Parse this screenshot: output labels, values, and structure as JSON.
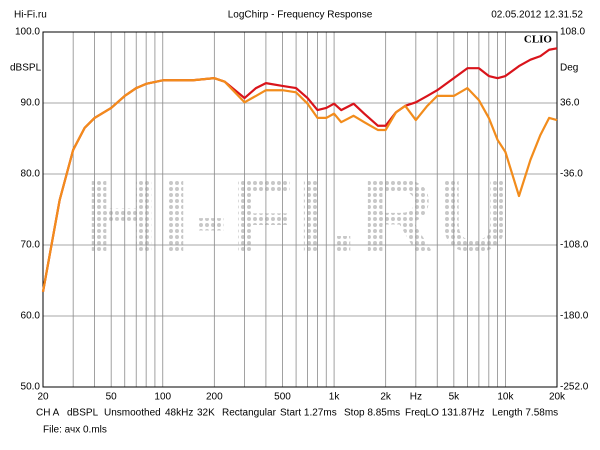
{
  "header": {
    "left": "Hi-Fi.ru",
    "center": "LogChirp - Frequency Response",
    "right": "02.05.2012 12.31.52"
  },
  "chart_data": {
    "type": "line",
    "brand": "CLIO",
    "watermark": "HI-FI.RU",
    "ylabel": "dBSPL",
    "y2label": "Deg",
    "xscale": "log",
    "grid": true,
    "x": [
      20,
      25,
      30,
      35,
      40,
      50,
      60,
      70,
      80,
      100,
      150,
      200,
      230,
      300,
      350,
      400,
      500,
      600,
      700,
      800,
      900,
      1000,
      1100,
      1300,
      1500,
      1800,
      2000,
      2300,
      2600,
      3000,
      3500,
      4000,
      5000,
      6000,
      7000,
      8000,
      9000,
      10000,
      12000,
      14000,
      16000,
      18000,
      20000
    ],
    "series": [
      {
        "color": "#d9141b",
        "values": [
          63.4,
          76.3,
          83.4,
          86.5,
          87.9,
          89.3,
          91,
          92.1,
          92.7,
          93.2,
          93.2,
          93.5,
          93,
          90.7,
          92.1,
          92.8,
          92.4,
          92.1,
          90.7,
          89,
          89.3,
          89.9,
          89,
          89.9,
          88.5,
          86.8,
          86.8,
          88.7,
          89.6,
          90.1,
          91,
          91.8,
          93.5,
          94.9,
          94.9,
          93.8,
          93.5,
          93.8,
          95.2,
          96.1,
          96.6,
          97.5,
          97.7
        ]
      },
      {
        "color": "#f28c1c",
        "values": [
          63.4,
          76.3,
          83.4,
          86.5,
          87.9,
          89.3,
          91,
          92.1,
          92.7,
          93.2,
          93.2,
          93.5,
          93,
          90.1,
          91,
          91.8,
          91.8,
          91.5,
          89.9,
          87.9,
          87.9,
          88.5,
          87.3,
          88.2,
          87.3,
          86.2,
          86.2,
          88.7,
          89.6,
          87.6,
          89.6,
          91,
          91,
          92.1,
          90.4,
          87.9,
          84.8,
          83.1,
          76.9,
          82,
          85.5,
          87.9,
          87.6
        ]
      }
    ],
    "xlim": [
      20,
      20000
    ],
    "xticks": [
      20,
      50,
      100,
      200,
      500,
      {
        "value": 1000,
        "label": "1k"
      },
      {
        "value": 2000,
        "label": "2k"
      },
      {
        "value": 3000,
        "label": "Hz"
      },
      {
        "value": 5000,
        "label": "5k"
      },
      {
        "value": 10000,
        "label": "10k"
      },
      {
        "value": 20000,
        "label": "20k"
      }
    ],
    "xminor": [
      30,
      40,
      60,
      70,
      80,
      90,
      300,
      400,
      600,
      700,
      800,
      900,
      4000,
      6000,
      7000,
      8000,
      9000
    ],
    "ylim": [
      50,
      100
    ],
    "yticks": [
      {
        "value": 100,
        "label": "100.0"
      },
      {
        "value": 90,
        "label": "90.0"
      },
      {
        "value": 80,
        "label": "80.0"
      },
      {
        "value": 70,
        "label": "70.0"
      },
      {
        "value": 60,
        "label": "60.0"
      },
      {
        "value": 50,
        "label": "50.0"
      }
    ],
    "y2lim": [
      -252,
      108
    ],
    "y2ticks": [
      {
        "value": 108,
        "label": "108.0"
      },
      {
        "value": 36,
        "label": "36.0"
      },
      {
        "value": -36,
        "label": "-36.0"
      },
      {
        "value": -108,
        "label": "-108.0"
      },
      {
        "value": -180,
        "label": "-180.0"
      },
      {
        "value": -252,
        "label": "-252.0"
      }
    ]
  },
  "footer": {
    "items": [
      "CH A",
      "dBSPL",
      "Unsmoothed",
      "48kHz",
      "32K",
      "Rectangular",
      "Start 1.27ms",
      "Stop 8.85ms",
      "FreqLO 131.87Hz",
      "Length 7.58ms"
    ],
    "file": "File: ачх 0.mls"
  }
}
